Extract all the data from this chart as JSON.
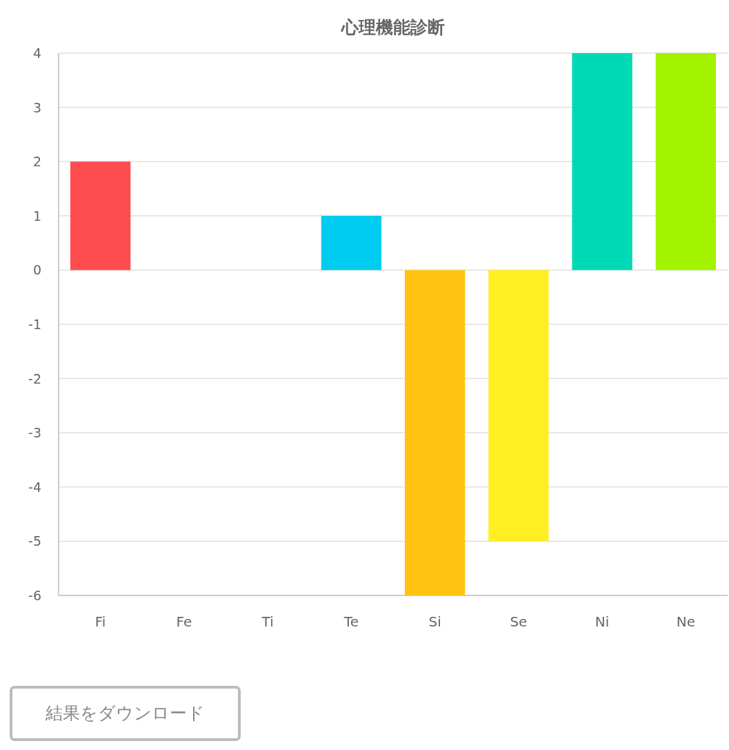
{
  "chart_data": {
    "type": "bar",
    "title": "心理機能診断",
    "categories": [
      "Fi",
      "Fe",
      "Ti",
      "Te",
      "Si",
      "Se",
      "Ni",
      "Ne"
    ],
    "values": [
      2,
      0,
      0,
      1,
      -6,
      -5,
      4,
      4
    ],
    "colors": [
      "#ff4d4f",
      null,
      null,
      "#00cbf0",
      "#ffc310",
      "#ffee22",
      "#00d9b6",
      "#a3f200"
    ],
    "ylim": [
      -6,
      4
    ],
    "yticks": [
      -6,
      -5,
      -4,
      -3,
      -2,
      -1,
      0,
      1,
      2,
      3,
      4
    ],
    "grid": "y",
    "annotations": [
      "結果をダウンロード"
    ]
  }
}
